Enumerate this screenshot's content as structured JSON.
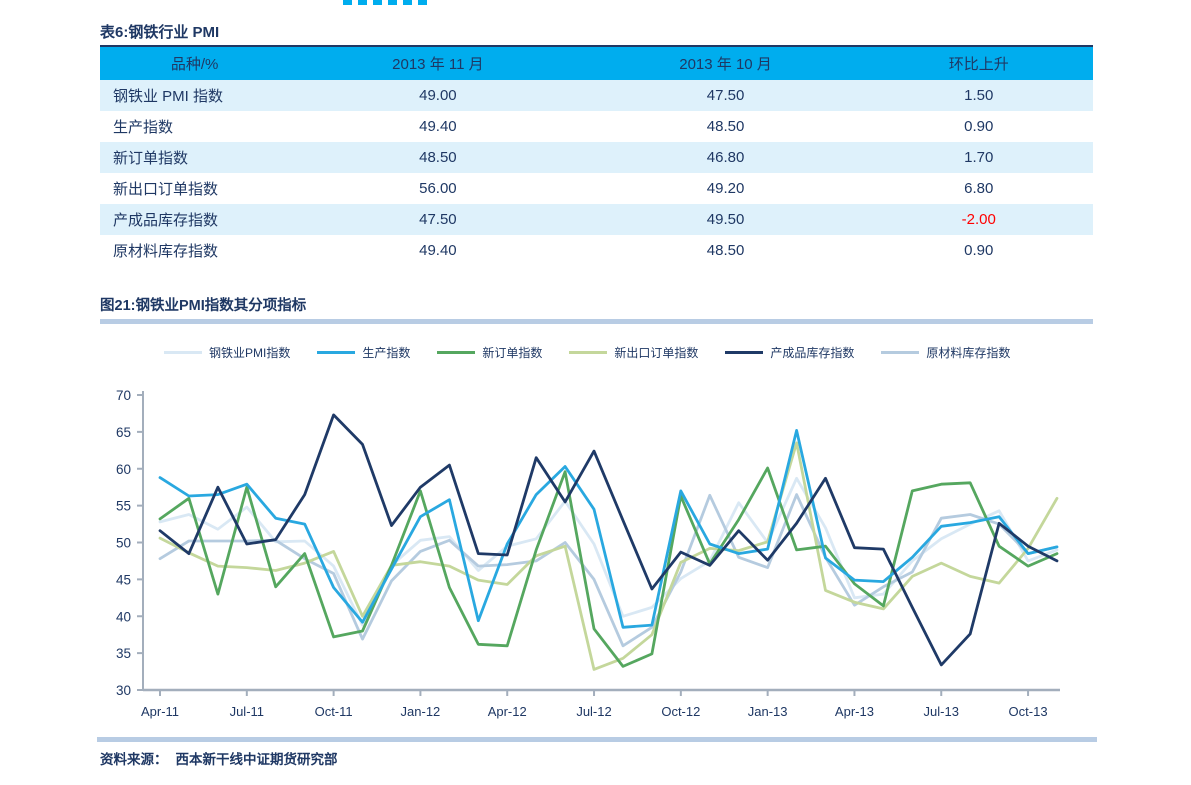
{
  "colors": {
    "navy_text": "#1f3864",
    "table_header_bg": "#00adee",
    "table_alt_row_bg": "#def1fb",
    "negative_value": "#ff0000",
    "divider_bar": "#b8cce4",
    "axis": "#a3aebc",
    "page_header_fragment": "#00adee"
  },
  "table": {
    "title": "表6:钢铁行业 PMI",
    "columns": [
      "品种/%",
      "2013 年 11 月",
      "2013 年 10 月",
      "环比上升"
    ],
    "rows": [
      {
        "name": "钢铁业 PMI 指数",
        "values": [
          "49.00",
          "47.50",
          "1.50"
        ]
      },
      {
        "name": "生产指数",
        "values": [
          "49.40",
          "48.50",
          "0.90"
        ]
      },
      {
        "name": "新订单指数",
        "values": [
          "48.50",
          "46.80",
          "1.70"
        ]
      },
      {
        "name": "新出口订单指数",
        "values": [
          "56.00",
          "49.20",
          "6.80"
        ]
      },
      {
        "name": "产成品库存指数",
        "values": [
          "47.50",
          "49.50",
          "-2.00"
        ]
      },
      {
        "name": "原材料库存指数",
        "values": [
          "49.40",
          "48.50",
          "0.90"
        ]
      }
    ]
  },
  "figure": {
    "title": "图21:钢铁业PMI指数其分项指标",
    "source_label": "资料来源：",
    "source_text": "西本新干线中证期货研究部"
  },
  "chart_data": {
    "type": "line",
    "title": "图21:钢铁业PMI指数其分项指标",
    "xlabel": "",
    "ylabel": "",
    "ylim": [
      30,
      70
    ],
    "y_ticks": [
      30,
      35,
      40,
      45,
      50,
      55,
      60,
      65,
      70
    ],
    "grid": false,
    "legend_position": "top",
    "x_tick_every": 3,
    "x": [
      "Apr-11",
      "May-11",
      "Jun-11",
      "Jul-11",
      "Aug-11",
      "Sep-11",
      "Oct-11",
      "Nov-11",
      "Dec-11",
      "Jan-12",
      "Feb-12",
      "Mar-12",
      "Apr-12",
      "May-12",
      "Jun-12",
      "Jul-12",
      "Aug-12",
      "Sep-12",
      "Oct-12",
      "Nov-12",
      "Dec-12",
      "Jan-13",
      "Feb-13",
      "Mar-13",
      "Apr-13",
      "May-13",
      "Jun-13",
      "Jul-13",
      "Aug-13",
      "Sep-13",
      "Oct-13",
      "Nov-13"
    ],
    "series": [
      {
        "name": "钢铁业PMI指数",
        "color": "#d9e8f4",
        "values": [
          52.8,
          53.8,
          51.8,
          54.8,
          50.1,
          50.2,
          46.8,
          38.8,
          46.9,
          50.3,
          50.8,
          46.2,
          49.5,
          50.5,
          55.6,
          49.8,
          40.0,
          41.2,
          45.1,
          47.5,
          55.4,
          50.0,
          58.7,
          52.0,
          42.5,
          43.0,
          47.5,
          50.5,
          52.5,
          54.3,
          47.5,
          49.0
        ]
      },
      {
        "name": "生产指数",
        "color": "#29a8e0",
        "values": [
          58.8,
          56.3,
          56.5,
          57.9,
          53.3,
          52.5,
          43.9,
          39.2,
          46.4,
          53.5,
          55.8,
          39.4,
          49.8,
          56.5,
          60.3,
          54.5,
          38.5,
          38.8,
          57.0,
          49.8,
          48.5,
          49.1,
          65.2,
          47.9,
          44.9,
          44.7,
          48.0,
          52.2,
          52.7,
          53.5,
          48.5,
          49.4
        ]
      },
      {
        "name": "新订单指数",
        "color": "#55a75f",
        "values": [
          53.2,
          56.0,
          43.0,
          57.5,
          44.0,
          48.5,
          37.2,
          38.0,
          46.9,
          57.0,
          43.9,
          36.2,
          36.0,
          49.0,
          59.6,
          38.3,
          33.2,
          34.9,
          56.3,
          47.1,
          53.1,
          60.1,
          49.0,
          49.5,
          44.4,
          41.4,
          57.0,
          57.9,
          58.1,
          49.5,
          46.8,
          48.5
        ]
      },
      {
        "name": "新出口订单指数",
        "color": "#c4d79b",
        "values": [
          50.6,
          48.6,
          46.8,
          46.6,
          46.2,
          47.2,
          48.8,
          40.0,
          46.9,
          47.4,
          46.8,
          44.9,
          44.3,
          48.2,
          49.5,
          32.8,
          34.3,
          37.5,
          47.3,
          49.2,
          48.9,
          50.1,
          63.5,
          43.5,
          41.9,
          41.0,
          45.4,
          47.2,
          45.4,
          44.5,
          49.2,
          56.0
        ]
      },
      {
        "name": "产成品库存指数",
        "color": "#1f3a67",
        "values": [
          51.6,
          48.5,
          57.5,
          49.8,
          50.4,
          56.5,
          67.3,
          63.3,
          52.3,
          57.5,
          60.5,
          48.5,
          48.3,
          61.5,
          55.5,
          62.4,
          53.0,
          43.7,
          48.7,
          46.9,
          51.6,
          47.6,
          52.6,
          58.7,
          49.3,
          49.1,
          41.2,
          33.4,
          37.6,
          52.6,
          49.5,
          47.5
        ]
      },
      {
        "name": "原材料库存指数",
        "color": "#b5cbdf",
        "values": [
          47.8,
          50.2,
          50.2,
          50.2,
          50.3,
          47.8,
          45.8,
          36.9,
          44.8,
          48.8,
          50.3,
          46.8,
          47.0,
          47.5,
          50.0,
          45.0,
          36.0,
          38.5,
          46.0,
          56.4,
          48.0,
          46.6,
          56.5,
          48.0,
          41.5,
          44.0,
          46.0,
          53.3,
          53.8,
          52.5,
          48.5,
          49.4
        ]
      }
    ]
  }
}
